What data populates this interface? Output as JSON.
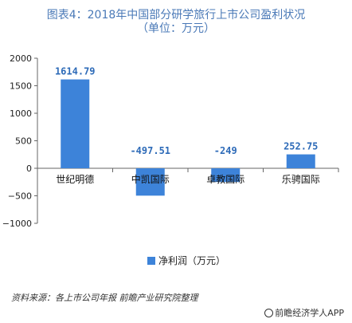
{
  "title_line1": "图表4：2018年中国部分研学旅行上市公司盈利状况",
  "title_line2": "（单位：万元）",
  "source": "资料来源：各上市公司年报 前瞻产业研究院整理",
  "brand": "前瞻经济学人APP",
  "colors": {
    "bar": "#3d83d9",
    "title": "#4a79b7",
    "label": "#2e6bb8"
  },
  "chart_data": {
    "type": "bar",
    "title": "图表4：2018年中国部分研学旅行上市公司盈利状况（单位：万元）",
    "categories": [
      "世纪明德",
      "中凯国际",
      "卓教国际",
      "乐骋国际"
    ],
    "series": [
      {
        "name": "净利润（万元）",
        "values": [
          1614.79,
          -497.51,
          -249,
          252.75
        ]
      }
    ],
    "value_labels": [
      "1614.79",
      "-497.51",
      "-249",
      "252.75"
    ],
    "ylim": [
      -1000,
      2000
    ],
    "yticks": [
      2000,
      1500,
      1000,
      500,
      0,
      -500,
      -1000
    ],
    "ytick_labels": [
      "2000",
      "1500",
      "1000",
      "500",
      "0",
      "−500",
      "−1000"
    ],
    "legend_position": "bottom",
    "grid": false
  }
}
